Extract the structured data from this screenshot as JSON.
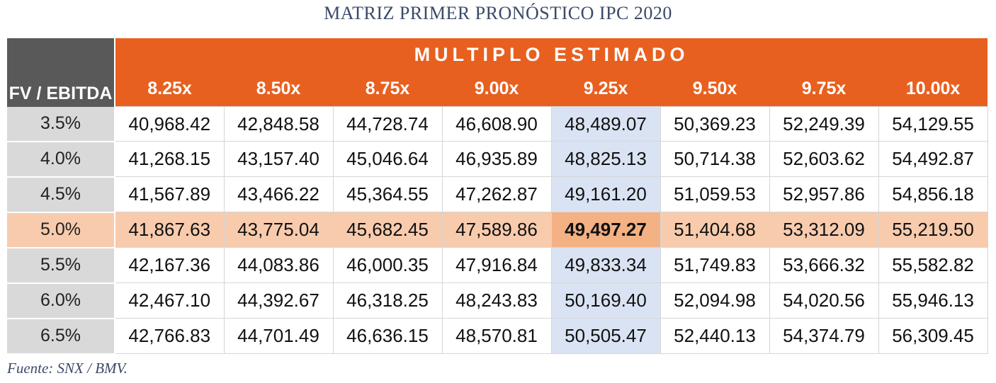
{
  "title": "MATRIZ PRIMER PRONÓSTICO IPC 2020",
  "source": "Fuente: SNX / BMV.",
  "colors": {
    "header_orange": "#e8601f",
    "corner_gray": "#595959",
    "rowhead_gray": "#d9d9d9",
    "highlight_row": "#f8cbad",
    "highlight_cell": "#f4b183",
    "highlight_col": "#dae3f3"
  },
  "chart_data": {
    "type": "table",
    "title": "MATRIZ PRIMER PRONÓSTICO IPC 2020",
    "row_header_label": "FV / EBITDA",
    "column_group_label": "MULTIPLO ESTIMADO",
    "columns": [
      "8.25x",
      "8.50x",
      "8.75x",
      "9.00x",
      "9.25x",
      "9.50x",
      "9.75x",
      "10.00x"
    ],
    "rows": [
      {
        "label": "3.5%",
        "values": [
          "40,968.42",
          "42,848.58",
          "44,728.74",
          "46,608.90",
          "48,489.07",
          "50,369.23",
          "52,249.39",
          "54,129.55"
        ]
      },
      {
        "label": "4.0%",
        "values": [
          "41,268.15",
          "43,157.40",
          "45,046.64",
          "46,935.89",
          "48,825.13",
          "50,714.38",
          "52,603.62",
          "54,492.87"
        ]
      },
      {
        "label": "4.5%",
        "values": [
          "41,567.89",
          "43,466.22",
          "45,364.55",
          "47,262.87",
          "49,161.20",
          "51,059.53",
          "52,957.86",
          "54,856.18"
        ]
      },
      {
        "label": "5.0%",
        "values": [
          "41,867.63",
          "43,775.04",
          "45,682.45",
          "47,589.86",
          "49,497.27",
          "51,404.68",
          "53,312.09",
          "55,219.50"
        ]
      },
      {
        "label": "5.5%",
        "values": [
          "42,167.36",
          "44,083.86",
          "46,000.35",
          "47,916.84",
          "49,833.34",
          "51,749.83",
          "53,666.32",
          "55,582.82"
        ]
      },
      {
        "label": "6.0%",
        "values": [
          "42,467.10",
          "44,392.67",
          "46,318.25",
          "48,243.83",
          "50,169.40",
          "52,094.98",
          "54,020.56",
          "55,946.13"
        ]
      },
      {
        "label": "6.5%",
        "values": [
          "42,766.83",
          "44,701.49",
          "46,636.15",
          "48,570.81",
          "50,505.47",
          "52,440.13",
          "54,374.79",
          "56,309.45"
        ]
      }
    ],
    "highlight_row": "5.0%",
    "highlight_column": "9.25x"
  }
}
